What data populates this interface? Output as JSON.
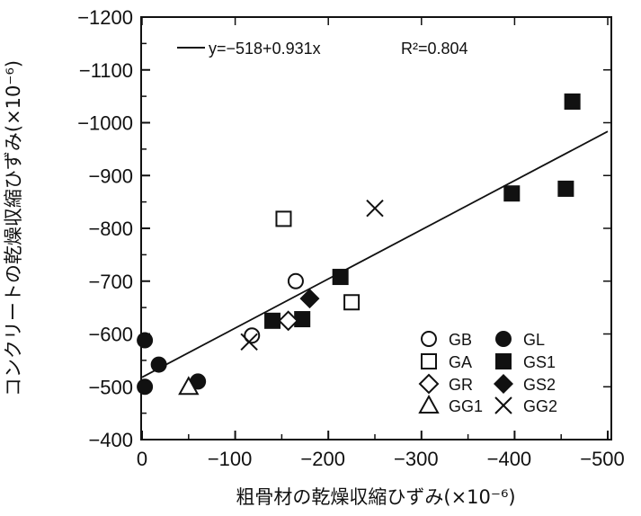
{
  "chart_data": {
    "type": "scatter",
    "xlabel": "粗骨材の乾燥収縮ひずみ(×10⁻⁶)",
    "ylabel": "コンクリートの乾燥収縮ひずみ(×10⁻⁶)",
    "xlim": [
      0,
      -500
    ],
    "ylim": [
      -400,
      -1200
    ],
    "x_ticks": [
      "0",
      "−100",
      "−200",
      "−300",
      "−400",
      "−500"
    ],
    "y_ticks": [
      "−400",
      "−500",
      "−600",
      "−700",
      "−800",
      "−900",
      "−1000",
      "−1100",
      "−1200"
    ],
    "x_tick_values": [
      0,
      -100,
      -200,
      -300,
      -400,
      -500
    ],
    "y_tick_values": [
      -400,
      -500,
      -600,
      -700,
      -800,
      -900,
      -1000,
      -1100,
      -1200
    ],
    "grid": false,
    "legend_position": "bottom-right",
    "regression": {
      "label": "y=−518+0.931x",
      "r2_label": "R²=0.804",
      "intercept": -518,
      "slope": 0.931
    },
    "series": [
      {
        "name": "GB",
        "marker": "circle-open",
        "points": [
          [
            -165,
            -700
          ],
          [
            -118,
            -597
          ]
        ]
      },
      {
        "name": "GL",
        "marker": "circle-filled",
        "points": [
          [
            -3,
            -588
          ],
          [
            -3,
            -500
          ],
          [
            -18,
            -542
          ],
          [
            -60,
            -510
          ]
        ]
      },
      {
        "name": "GA",
        "marker": "square-open",
        "points": [
          [
            -152,
            -818
          ],
          [
            -225,
            -660
          ]
        ]
      },
      {
        "name": "GS1",
        "marker": "square-filled",
        "points": [
          [
            -462,
            -1040
          ],
          [
            -397,
            -866
          ],
          [
            -455,
            -875
          ],
          [
            -213,
            -708
          ],
          [
            -172,
            -628
          ],
          [
            -140,
            -625
          ]
        ]
      },
      {
        "name": "GR",
        "marker": "diamond-open",
        "points": [
          [
            -157,
            -625
          ]
        ]
      },
      {
        "name": "GS2",
        "marker": "diamond-filled",
        "points": [
          [
            -180,
            -667
          ]
        ]
      },
      {
        "name": "GG1",
        "marker": "triangle-open",
        "points": [
          [
            -50,
            -500
          ]
        ]
      },
      {
        "name": "GG2",
        "marker": "cross",
        "points": [
          [
            -250,
            -838
          ],
          [
            -115,
            -585
          ]
        ]
      }
    ]
  }
}
